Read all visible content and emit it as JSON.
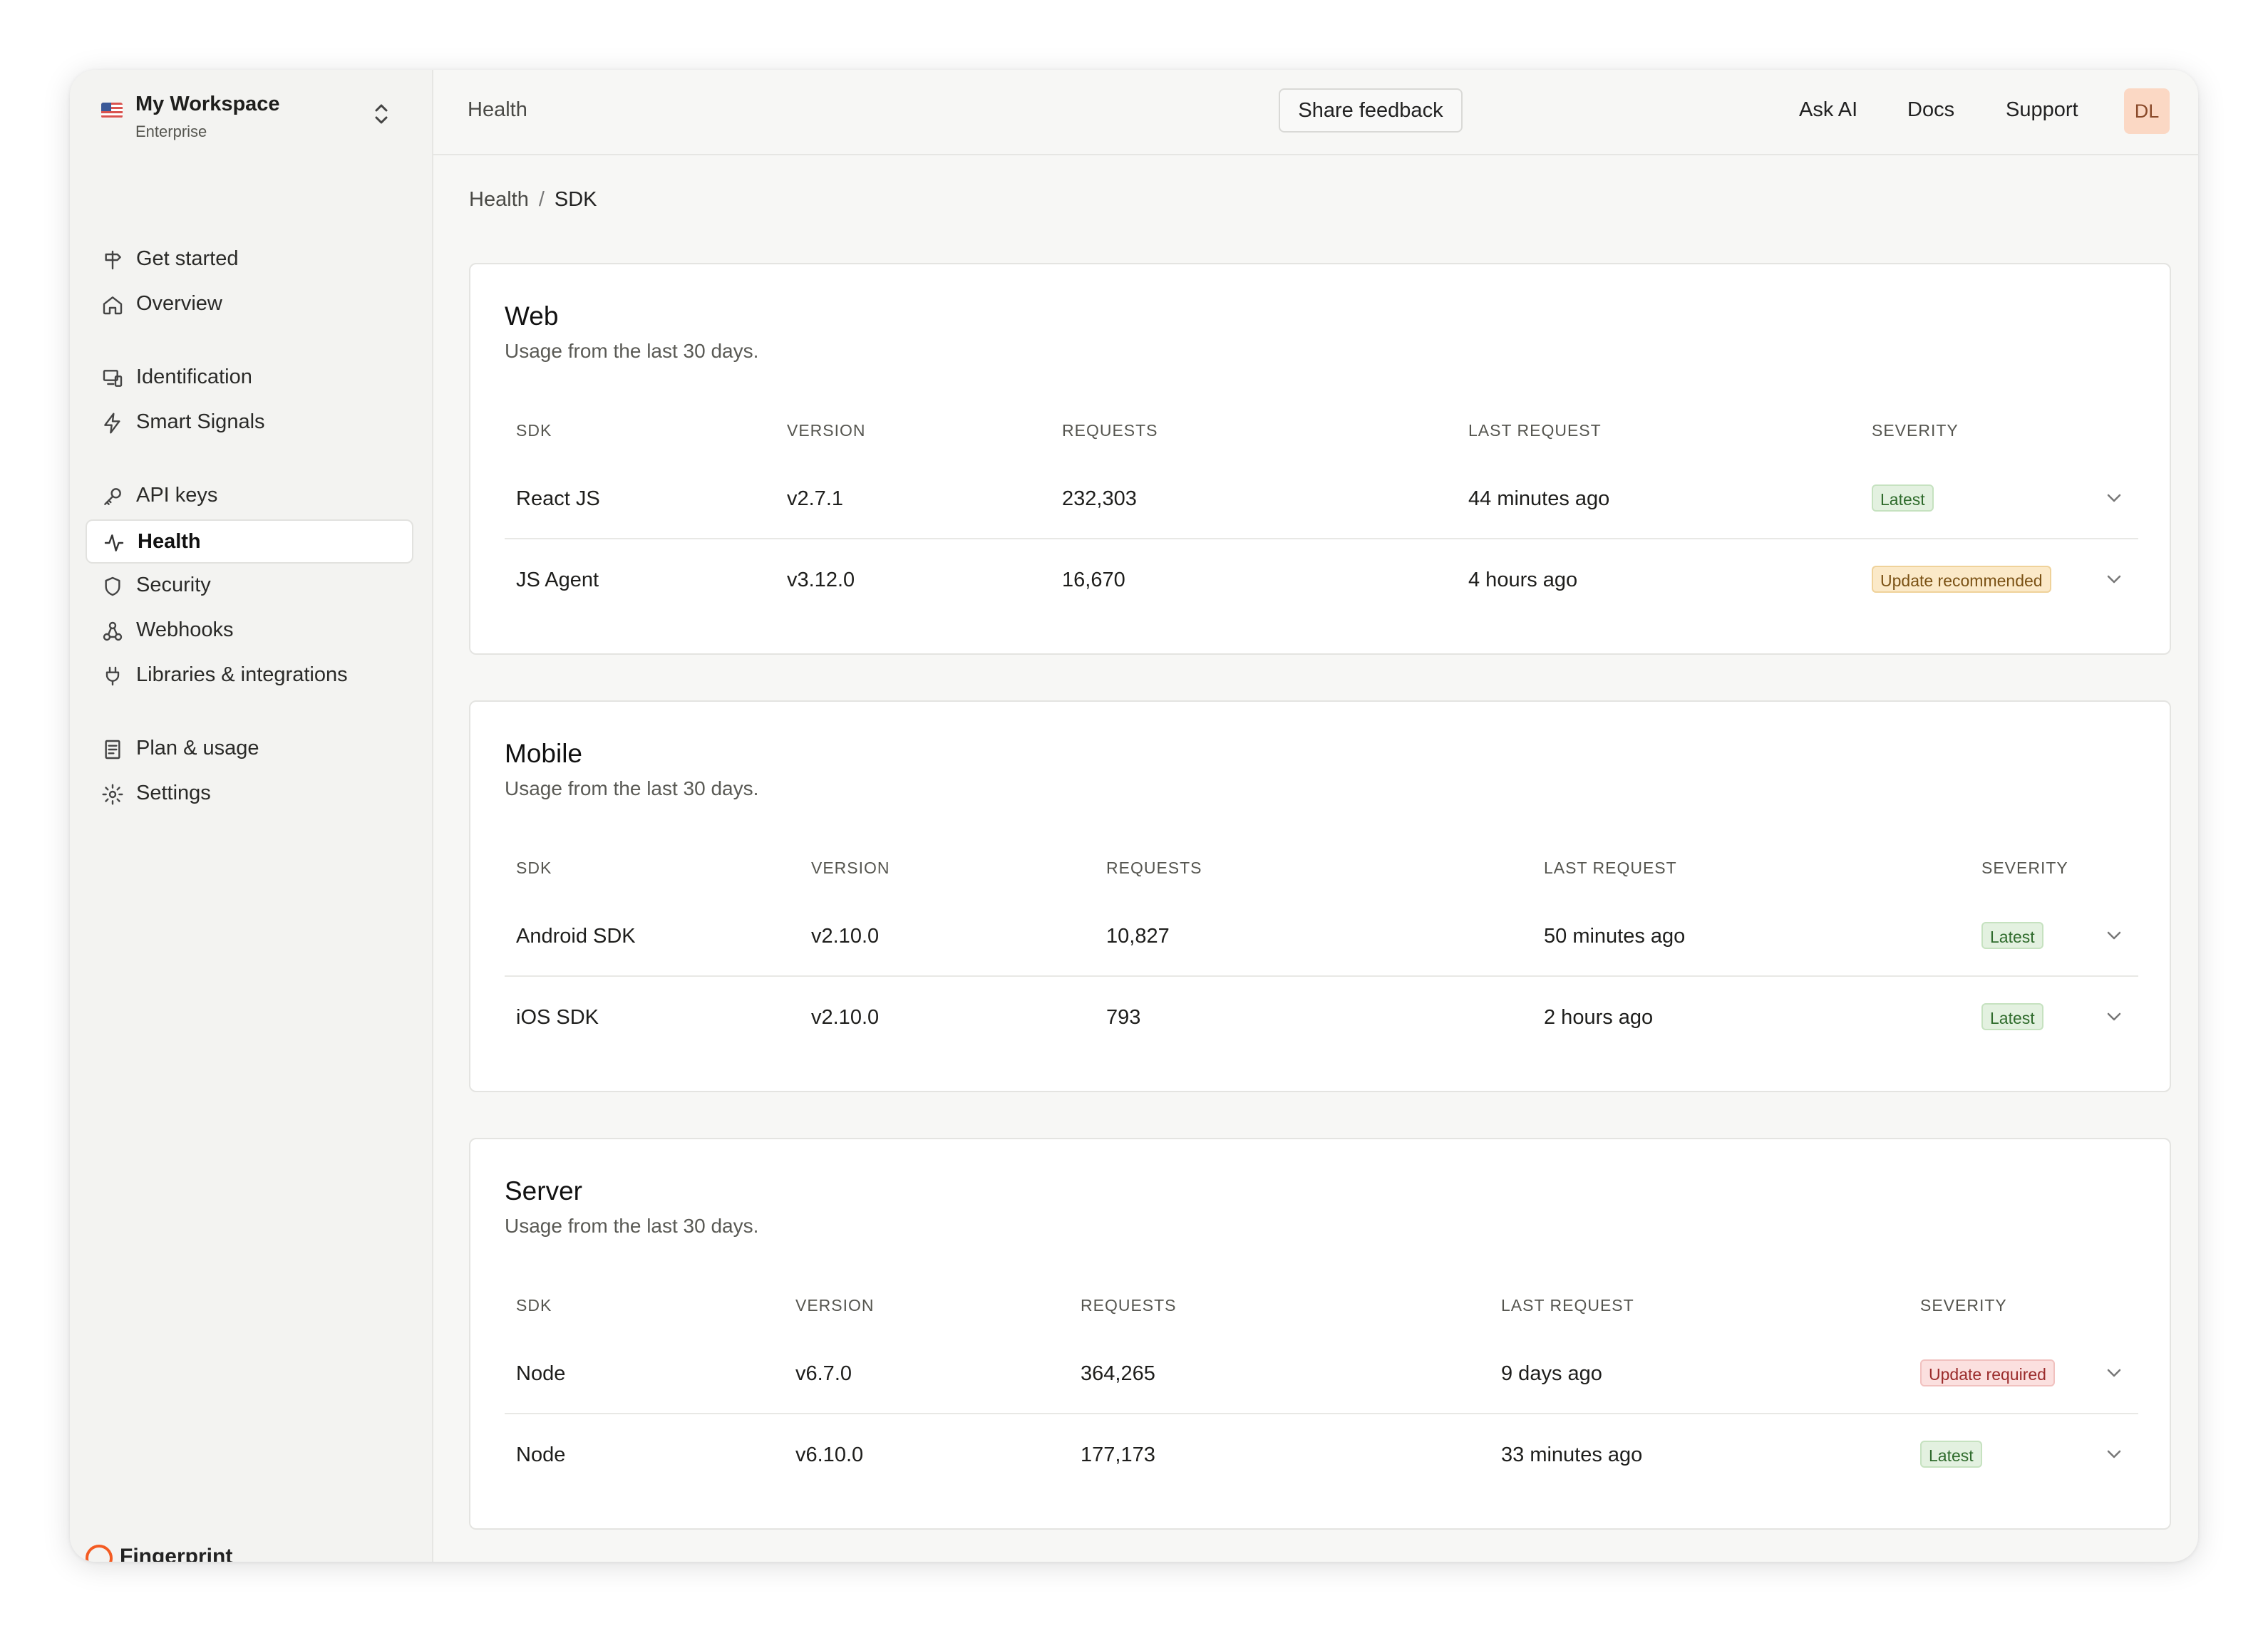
{
  "workspace": {
    "name": "My Workspace",
    "plan": "Enterprise"
  },
  "sidebar": {
    "items": [
      {
        "label": "Get started",
        "icon": "signpost-icon"
      },
      {
        "label": "Overview",
        "icon": "home-icon"
      },
      {
        "label": "Identification",
        "icon": "devices-icon"
      },
      {
        "label": "Smart Signals",
        "icon": "lightning-icon"
      },
      {
        "label": "API keys",
        "icon": "key-icon"
      },
      {
        "label": "Health",
        "icon": "pulse-icon",
        "active": true
      },
      {
        "label": "Security",
        "icon": "shield-icon"
      },
      {
        "label": "Webhooks",
        "icon": "webhook-icon"
      },
      {
        "label": "Libraries & integrations",
        "icon": "plug-icon"
      },
      {
        "label": "Plan & usage",
        "icon": "document-icon"
      },
      {
        "label": "Settings",
        "icon": "gear-icon"
      }
    ],
    "brand": "Fingerprint"
  },
  "header": {
    "title": "Health",
    "feedback_label": "Share feedback",
    "links": [
      "Ask AI",
      "Docs",
      "Support"
    ],
    "avatar_initials": "DL"
  },
  "breadcrumb": {
    "parent": "Health",
    "separator": "/",
    "current": "SDK"
  },
  "columns": [
    "SDK",
    "VERSION",
    "REQUESTS",
    "LAST REQUEST",
    "SEVERITY"
  ],
  "sections": [
    {
      "title": "Web",
      "subtitle": "Usage from the last 30 days.",
      "rows": [
        {
          "sdk": "React JS",
          "version": "v2.7.1",
          "requests": "232,303",
          "last_request": "44 minutes ago",
          "severity": "Latest"
        },
        {
          "sdk": "JS Agent",
          "version": "v3.12.0",
          "requests": "16,670",
          "last_request": "4 hours ago",
          "severity": "Update recommended"
        }
      ]
    },
    {
      "title": "Mobile",
      "subtitle": "Usage from the last 30 days.",
      "rows": [
        {
          "sdk": "Android SDK",
          "version": "v2.10.0",
          "requests": "10,827",
          "last_request": "50 minutes ago",
          "severity": "Latest"
        },
        {
          "sdk": "iOS SDK",
          "version": "v2.10.0",
          "requests": "793",
          "last_request": "2 hours ago",
          "severity": "Latest"
        }
      ]
    },
    {
      "title": "Server",
      "subtitle": "Usage from the last 30 days.",
      "rows": [
        {
          "sdk": "Node",
          "version": "v6.7.0",
          "requests": "364,265",
          "last_request": "9 days ago",
          "severity": "Update required"
        },
        {
          "sdk": "Node",
          "version": "v6.10.0",
          "requests": "177,173",
          "last_request": "33 minutes ago",
          "severity": "Latest"
        }
      ]
    }
  ],
  "colors": {
    "latest": "#2f6b2c",
    "update_recommended": "#7a5114",
    "update_required": "#9a2b2b",
    "avatar_bg": "#fbd8c4"
  }
}
